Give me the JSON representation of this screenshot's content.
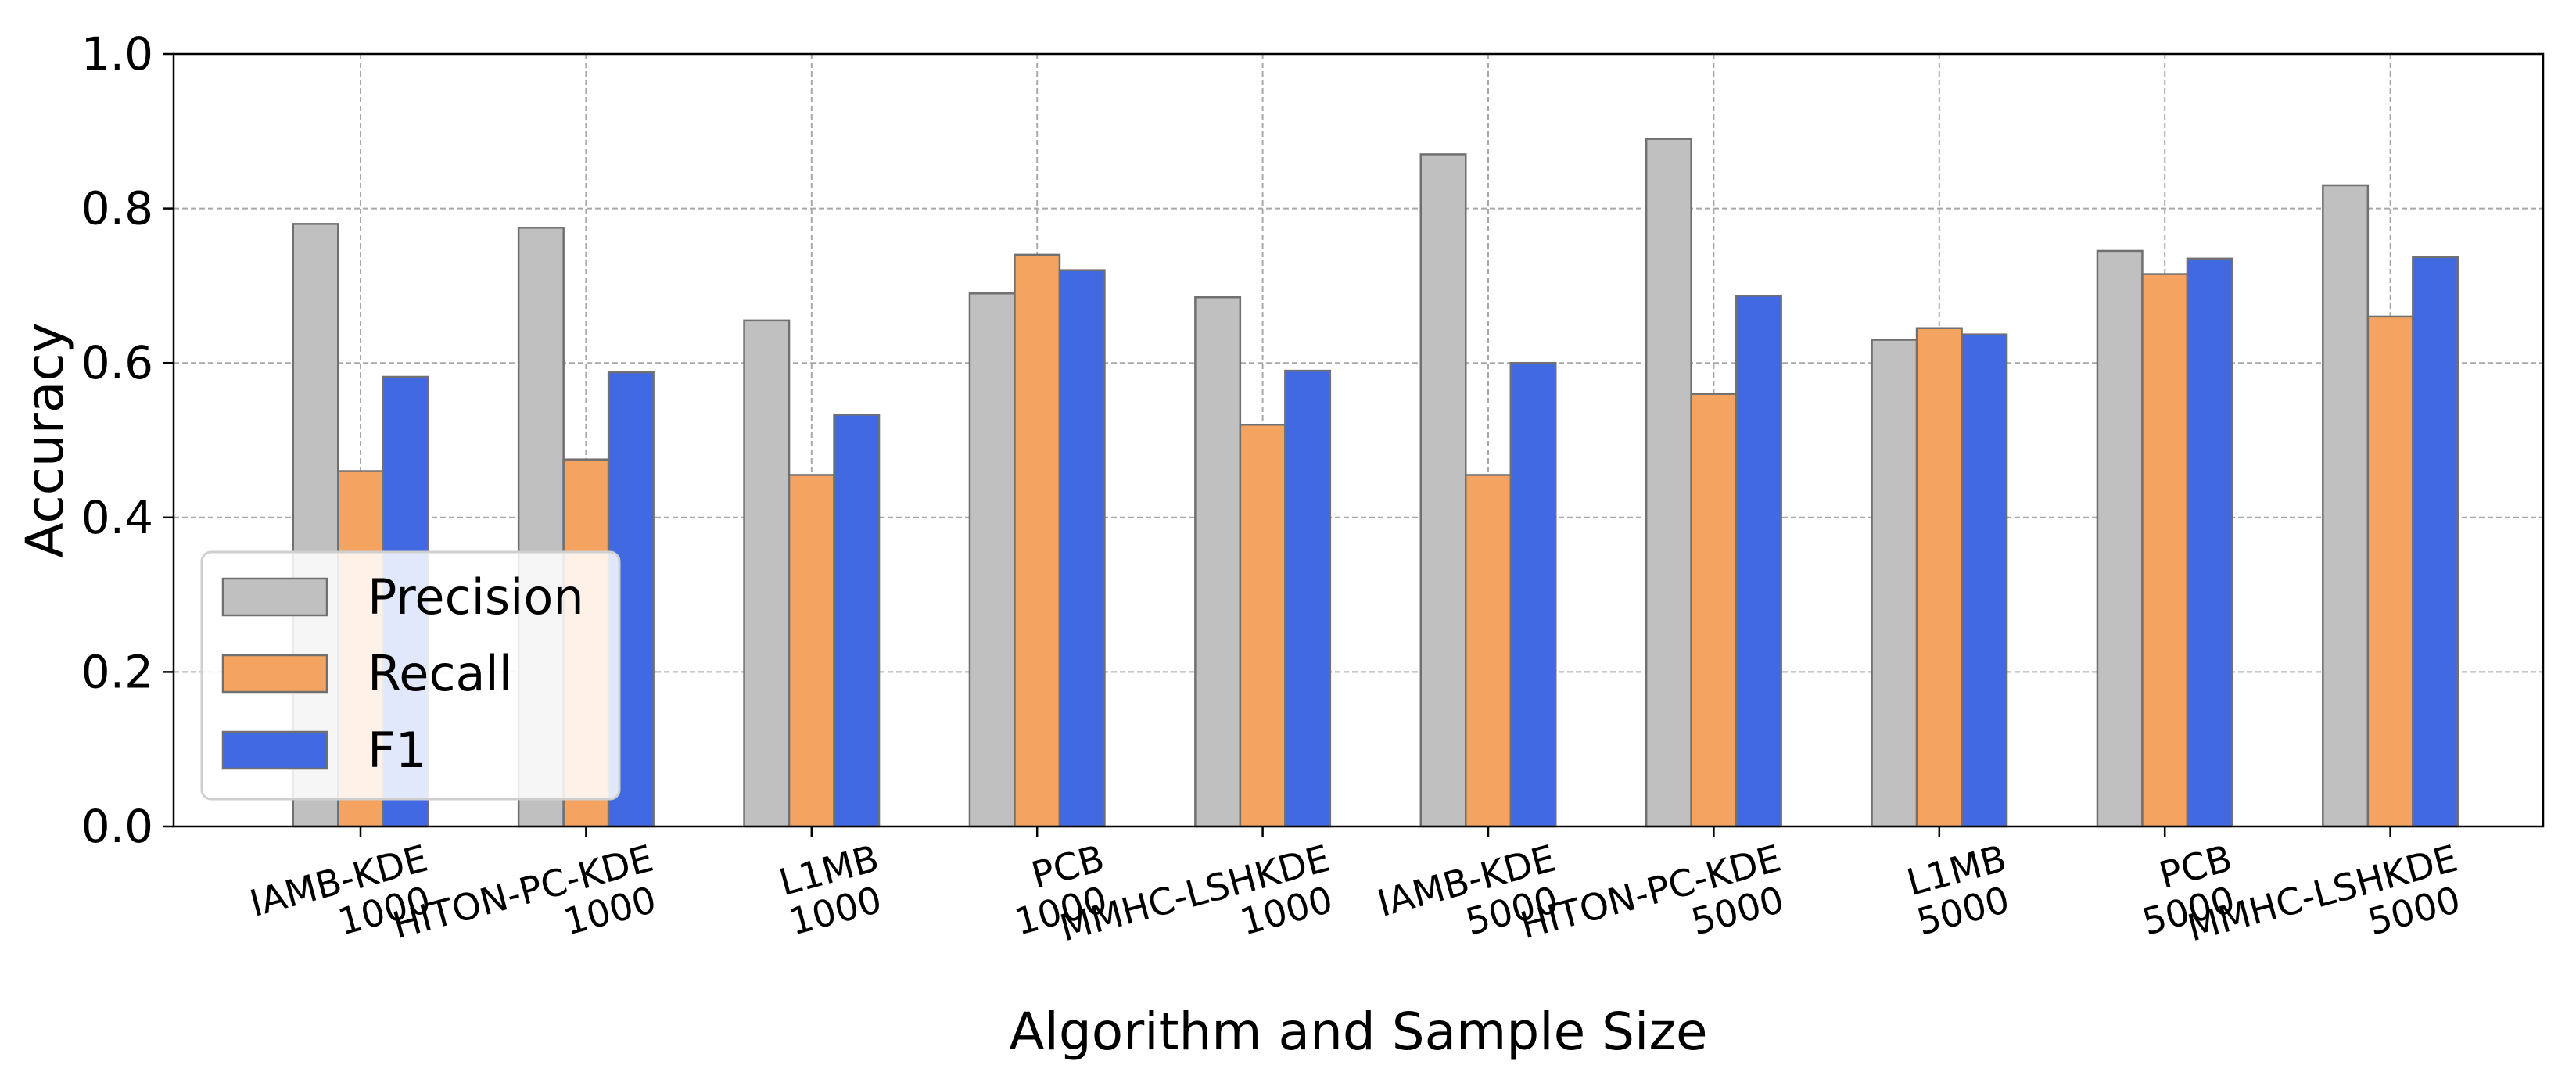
{
  "chart_data": {
    "type": "bar",
    "title": "",
    "xlabel": "Algorithm and Sample Size",
    "ylabel": "Accuracy",
    "ylim": [
      0,
      1.0
    ],
    "yticks": [
      "0.0",
      "0.2",
      "0.4",
      "0.6",
      "0.8",
      "1.0"
    ],
    "grid": true,
    "legend_position": "lower-left",
    "categories": [
      [
        "IAMB-KDE",
        "1000"
      ],
      [
        "HITON-PC-KDE",
        "1000"
      ],
      [
        "L1MB",
        "1000"
      ],
      [
        "PCB",
        "1000"
      ],
      [
        "MMHC-LSHKDE",
        "1000"
      ],
      [
        "IAMB-KDE",
        "5000"
      ],
      [
        "HITON-PC-KDE",
        "5000"
      ],
      [
        "L1MB",
        "5000"
      ],
      [
        "PCB",
        "5000"
      ],
      [
        "MMHC-LSHKDE",
        "5000"
      ]
    ],
    "series": [
      {
        "name": "Precision",
        "color": "#c0c0c0",
        "values": [
          0.78,
          0.775,
          0.655,
          0.69,
          0.685,
          0.87,
          0.89,
          0.63,
          0.745,
          0.83
        ]
      },
      {
        "name": "Recall",
        "color": "#f4a460",
        "values": [
          0.46,
          0.475,
          0.455,
          0.74,
          0.52,
          0.455,
          0.56,
          0.645,
          0.715,
          0.66
        ]
      },
      {
        "name": "F1",
        "color": "#4169e1",
        "values": [
          0.582,
          0.588,
          0.533,
          0.72,
          0.59,
          0.6,
          0.687,
          0.637,
          0.735,
          0.737
        ]
      }
    ]
  }
}
